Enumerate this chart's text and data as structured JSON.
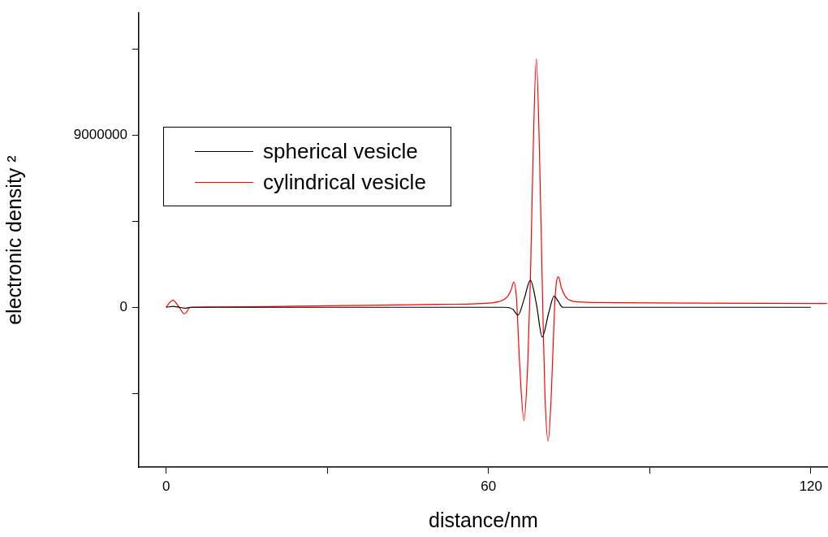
{
  "chart_data": {
    "type": "line",
    "xlabel": "distance/nm",
    "ylabel": "electronic density ²",
    "xlim": [
      -5.1,
      123.2
    ],
    "xticks": [
      0,
      {
        "value": 30,
        "label": null
      },
      60,
      {
        "value": 90,
        "label": null
      },
      120
    ],
    "ylim": [
      -8370000,
      15400000
    ],
    "yticks": [
      {
        "value": -4500000,
        "label": null
      },
      0,
      {
        "value": 4500000,
        "label": null
      },
      9000000,
      {
        "value": 13500000,
        "label": null
      }
    ],
    "grid": false,
    "legend": "top left",
    "marker": "none",
    "line_style": "solid",
    "series": [
      {
        "name": "spherical vesicle",
        "color": "#000000",
        "x": [
          0,
          1.3,
          2.5,
          3.5,
          4.5,
          63,
          64.5,
          65.5,
          66.6,
          67.8,
          68.9,
          70.0,
          71.2,
          72.2,
          73.0,
          73.8,
          120
        ],
        "values": [
          0,
          50000,
          0,
          -50000,
          0,
          0,
          -100000,
          -410000,
          400000,
          1420000,
          200000,
          -1560000,
          -300000,
          580000,
          300000,
          0,
          0
        ]
      },
      {
        "name": "cylindrical vesicle",
        "color": "#ff0000",
        "x": [
          0,
          0.5,
          1.26,
          2.3,
          3.4,
          4.5,
          10,
          30,
          50,
          60,
          62,
          63.5,
          64.2,
          64.7,
          65.2,
          65.8,
          66.6,
          67.3,
          67.8,
          68.3,
          68.9,
          69.5,
          70.1,
          70.5,
          71.1,
          71.7,
          72.3,
          72.6,
          73.0,
          73.6,
          74.5,
          76,
          80,
          100,
          123
        ],
        "values": [
          0,
          200000,
          370000,
          50000,
          -340000,
          0,
          20000,
          80000,
          150000,
          220000,
          300000,
          550000,
          900000,
          1310000,
          500000,
          -3000000,
          -5920000,
          -3000000,
          1500000,
          8000000,
          13000000,
          8000000,
          0,
          -4500000,
          -7000000,
          -4500000,
          0,
          1200000,
          1600000,
          1000000,
          500000,
          300000,
          250000,
          220000,
          200000
        ]
      }
    ]
  }
}
